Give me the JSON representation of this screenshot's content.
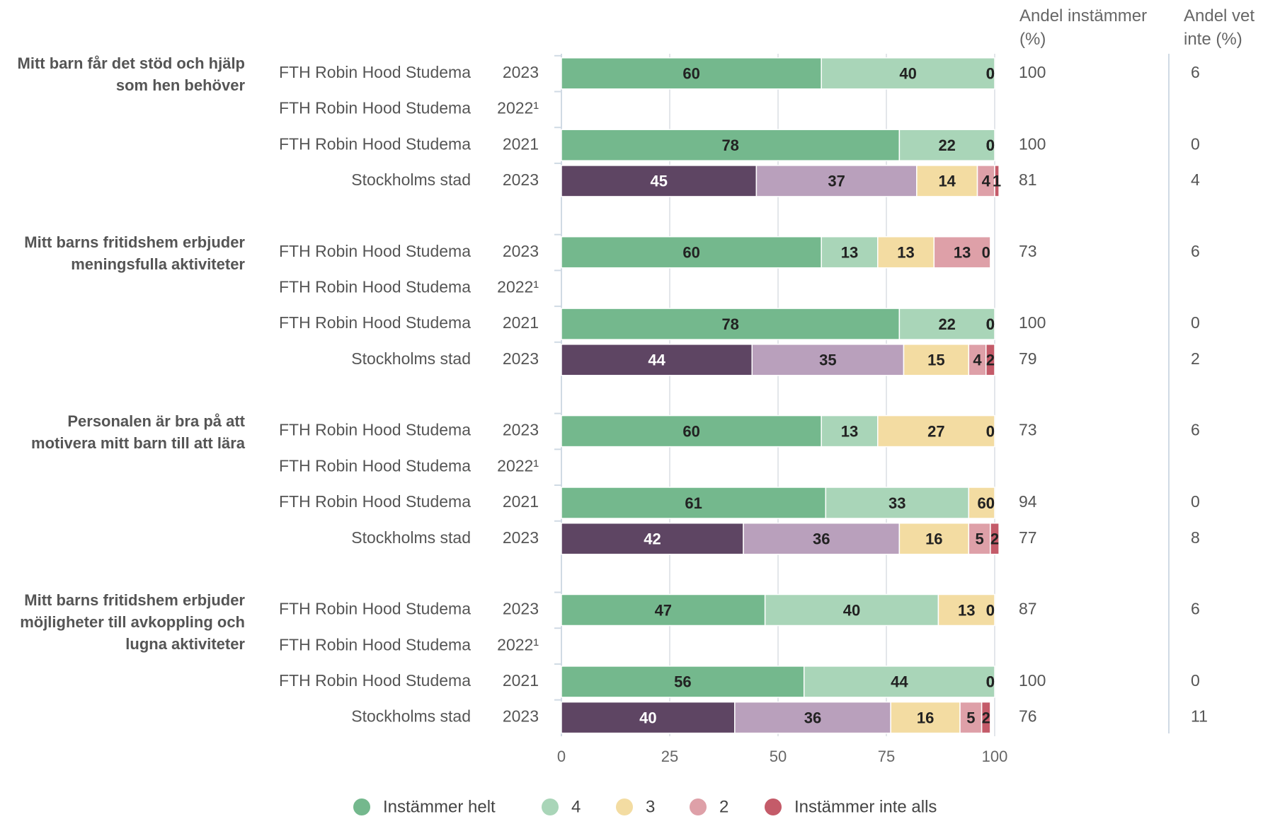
{
  "chart_data": {
    "type": "bar",
    "orientation": "horizontal",
    "stacked": true,
    "xlim": [
      0,
      100
    ],
    "xticks": [
      0,
      25,
      50,
      75,
      100
    ],
    "grid": true,
    "legend": "bottom",
    "columns": [
      "Andel instämmer (%)",
      "Andel vet inte (%)"
    ],
    "series": [
      {
        "name": "Instämmer helt",
        "color": "#74b88d"
      },
      {
        "name": "4",
        "color": "#a9d5b8"
      },
      {
        "name": "3",
        "color": "#f3dca2"
      },
      {
        "name": "2",
        "color": "#dea0a8"
      },
      {
        "name": "Instämmer inte alls",
        "color": "#c45b69"
      }
    ],
    "groups": [
      {
        "question": "Mitt barn får det stöd och hjälp som hen behöver",
        "rows": [
          {
            "entity": "FTH Robin Hood Studema",
            "year": "2023",
            "values": [
              60,
              40,
              0,
              0,
              0
            ],
            "colors": [
              "#74b88d",
              "#a9d5b8",
              "#f3dca2",
              "#dea0a8",
              "#c45b69"
            ],
            "agree": 100,
            "dont_know": 6
          },
          {
            "entity": "FTH Robin Hood Studema",
            "year": "2022¹",
            "values": [
              null,
              null,
              null,
              null,
              null
            ],
            "colors": [
              "#74b88d",
              "#a9d5b8",
              "#f3dca2",
              "#dea0a8",
              "#c45b69"
            ],
            "agree": null,
            "dont_know": null
          },
          {
            "entity": "FTH Robin Hood Studema",
            "year": "2021",
            "values": [
              78,
              22,
              0,
              0,
              0
            ],
            "colors": [
              "#74b88d",
              "#a9d5b8",
              "#f3dca2",
              "#dea0a8",
              "#c45b69"
            ],
            "agree": 100,
            "dont_know": 0
          },
          {
            "entity": "Stockholms stad",
            "year": "2023",
            "values": [
              45,
              37,
              14,
              4,
              1
            ],
            "colors": [
              "#5e4563",
              "#b9a0bc",
              "#f3dca2",
              "#dea0a8",
              "#c45b69"
            ],
            "agree": 81,
            "dont_know": 4
          }
        ]
      },
      {
        "question": "Mitt barns fritidshem erbjuder meningsfulla aktiviteter",
        "rows": [
          {
            "entity": "FTH Robin Hood Studema",
            "year": "2023",
            "values": [
              60,
              13,
              13,
              13,
              0
            ],
            "colors": [
              "#74b88d",
              "#a9d5b8",
              "#f3dca2",
              "#dea0a8",
              "#c45b69"
            ],
            "agree": 73,
            "dont_know": 6
          },
          {
            "entity": "FTH Robin Hood Studema",
            "year": "2022¹",
            "values": [
              null,
              null,
              null,
              null,
              null
            ],
            "colors": [
              "#74b88d",
              "#a9d5b8",
              "#f3dca2",
              "#dea0a8",
              "#c45b69"
            ],
            "agree": null,
            "dont_know": null
          },
          {
            "entity": "FTH Robin Hood Studema",
            "year": "2021",
            "values": [
              78,
              22,
              0,
              0,
              0
            ],
            "colors": [
              "#74b88d",
              "#a9d5b8",
              "#f3dca2",
              "#dea0a8",
              "#c45b69"
            ],
            "agree": 100,
            "dont_know": 0
          },
          {
            "entity": "Stockholms stad",
            "year": "2023",
            "values": [
              44,
              35,
              15,
              4,
              2
            ],
            "colors": [
              "#5e4563",
              "#b9a0bc",
              "#f3dca2",
              "#dea0a8",
              "#c45b69"
            ],
            "agree": 79,
            "dont_know": 2
          }
        ]
      },
      {
        "question": "Personalen är bra på att motivera mitt barn till att lära",
        "rows": [
          {
            "entity": "FTH Robin Hood Studema",
            "year": "2023",
            "values": [
              60,
              13,
              27,
              0,
              0
            ],
            "colors": [
              "#74b88d",
              "#a9d5b8",
              "#f3dca2",
              "#dea0a8",
              "#c45b69"
            ],
            "agree": 73,
            "dont_know": 6
          },
          {
            "entity": "FTH Robin Hood Studema",
            "year": "2022¹",
            "values": [
              null,
              null,
              null,
              null,
              null
            ],
            "colors": [
              "#74b88d",
              "#a9d5b8",
              "#f3dca2",
              "#dea0a8",
              "#c45b69"
            ],
            "agree": null,
            "dont_know": null
          },
          {
            "entity": "FTH Robin Hood Studema",
            "year": "2021",
            "values": [
              61,
              33,
              6,
              0,
              0
            ],
            "colors": [
              "#74b88d",
              "#a9d5b8",
              "#f3dca2",
              "#dea0a8",
              "#c45b69"
            ],
            "agree": 94,
            "dont_know": 0
          },
          {
            "entity": "Stockholms stad",
            "year": "2023",
            "values": [
              42,
              36,
              16,
              5,
              2
            ],
            "colors": [
              "#5e4563",
              "#b9a0bc",
              "#f3dca2",
              "#dea0a8",
              "#c45b69"
            ],
            "agree": 77,
            "dont_know": 8
          }
        ]
      },
      {
        "question": "Mitt barns fritidshem erbjuder möjligheter till avkoppling och lugna aktiviteter",
        "rows": [
          {
            "entity": "FTH Robin Hood Studema",
            "year": "2023",
            "values": [
              47,
              40,
              13,
              0,
              0
            ],
            "colors": [
              "#74b88d",
              "#a9d5b8",
              "#f3dca2",
              "#dea0a8",
              "#c45b69"
            ],
            "agree": 87,
            "dont_know": 6
          },
          {
            "entity": "FTH Robin Hood Studema",
            "year": "2022¹",
            "values": [
              null,
              null,
              null,
              null,
              null
            ],
            "colors": [
              "#74b88d",
              "#a9d5b8",
              "#f3dca2",
              "#dea0a8",
              "#c45b69"
            ],
            "agree": null,
            "dont_know": null
          },
          {
            "entity": "FTH Robin Hood Studema",
            "year": "2021",
            "values": [
              56,
              44,
              0,
              0,
              0
            ],
            "colors": [
              "#74b88d",
              "#a9d5b8",
              "#f3dca2",
              "#dea0a8",
              "#c45b69"
            ],
            "agree": 100,
            "dont_know": 0
          },
          {
            "entity": "Stockholms stad",
            "year": "2023",
            "values": [
              40,
              36,
              16,
              5,
              2
            ],
            "colors": [
              "#5e4563",
              "#b9a0bc",
              "#f3dca2",
              "#dea0a8",
              "#c45b69"
            ],
            "agree": 76,
            "dont_know": 11
          }
        ]
      }
    ]
  }
}
